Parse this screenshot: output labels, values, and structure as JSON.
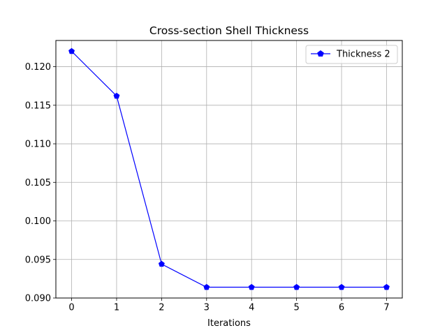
{
  "chart_data": {
    "type": "line",
    "title": "Cross-section Shell Thickness",
    "xlabel": "Iterations",
    "ylabel": "",
    "x": [
      0,
      1,
      2,
      3,
      4,
      5,
      6,
      7
    ],
    "series": [
      {
        "name": "Thickness 2",
        "color": "#0000ff",
        "marker": "pentagon",
        "values": [
          0.122,
          0.1162,
          0.0944,
          0.0914,
          0.0914,
          0.0914,
          0.0914,
          0.0914
        ]
      }
    ],
    "xlim": [
      -0.35,
      7.35
    ],
    "ylim": [
      0.09,
      0.1234
    ],
    "xticks": [
      0,
      1,
      2,
      3,
      4,
      5,
      6,
      7
    ],
    "yticks": [
      0.09,
      0.095,
      0.1,
      0.105,
      0.11,
      0.115,
      0.12
    ],
    "ytick_labels": [
      "0.090",
      "0.095",
      "0.100",
      "0.105",
      "0.110",
      "0.115",
      "0.120"
    ],
    "grid": true,
    "legend_position": "upper right"
  }
}
